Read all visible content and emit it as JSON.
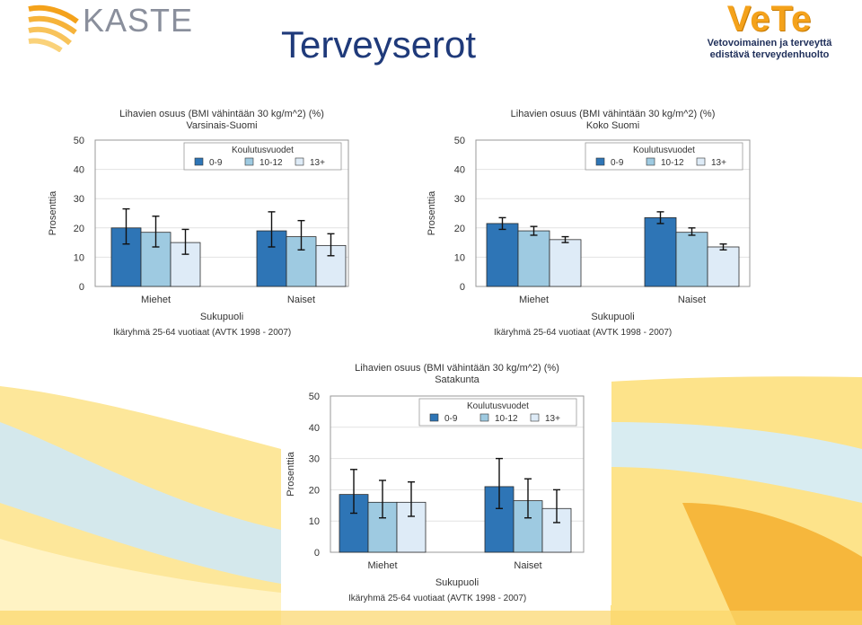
{
  "header": {
    "kaste_logo": "KASTE",
    "title": "Terveyserot",
    "vete_logo": "VeTe",
    "vete_tagline_1": "Vetovoimainen ja terveyttä",
    "vete_tagline_2": "edistävä terveydenhuolto"
  },
  "colors": {
    "series": [
      "#2e75b6",
      "#9ecae1",
      "#deebf7"
    ],
    "title_blue": "#1f3a7a",
    "vete_orange": "#f4a21b",
    "wave_yellow": "#fde79a",
    "wave_blue": "#bfe1f2"
  },
  "chart_data": [
    {
      "type": "bar",
      "title": "Lihavien osuus (BMI vähintään 30 kg/m^2) (%)",
      "subtitle": "Varsinais-Suomi",
      "xlabel": "Sukupuoli",
      "ylabel": "Prosenttia",
      "footnote": "Ikäryhmä 25-64 vuotiaat (AVTK 1998 - 2007)",
      "legend_title": "Koulutusvuodet",
      "legend_position": "top-right",
      "categories": [
        "Miehet",
        "Naiset"
      ],
      "ylim": [
        0,
        50
      ],
      "yticks": [
        0,
        10,
        20,
        30,
        40,
        50
      ],
      "series": [
        {
          "name": "0-9",
          "values": [
            20,
            19
          ],
          "low": [
            14.5,
            13.5
          ],
          "high": [
            26.5,
            25.5
          ]
        },
        {
          "name": "10-12",
          "values": [
            18.5,
            17
          ],
          "low": [
            13.5,
            12.5
          ],
          "high": [
            24,
            22.5
          ]
        },
        {
          "name": "13+",
          "values": [
            15,
            14
          ],
          "low": [
            11,
            10.5
          ],
          "high": [
            19.5,
            18
          ]
        }
      ]
    },
    {
      "type": "bar",
      "title": "Lihavien osuus (BMI vähintään 30 kg/m^2) (%)",
      "subtitle": "Koko Suomi",
      "xlabel": "Sukupuoli",
      "ylabel": "Prosenttia",
      "footnote": "Ikäryhmä 25-64 vuotiaat (AVTK 1998 - 2007)",
      "legend_title": "Koulutusvuodet",
      "legend_position": "top-right",
      "categories": [
        "Miehet",
        "Naiset"
      ],
      "ylim": [
        0,
        50
      ],
      "yticks": [
        0,
        10,
        20,
        30,
        40,
        50
      ],
      "series": [
        {
          "name": "0-9",
          "values": [
            21.5,
            23.5
          ],
          "low": [
            19.5,
            21.5
          ],
          "high": [
            23.5,
            25.5
          ]
        },
        {
          "name": "10-12",
          "values": [
            19,
            18.5
          ],
          "low": [
            17.5,
            17.5
          ],
          "high": [
            20.5,
            20
          ]
        },
        {
          "name": "13+",
          "values": [
            16,
            13.5
          ],
          "low": [
            15,
            12.5
          ],
          "high": [
            17,
            14.5
          ]
        }
      ]
    },
    {
      "type": "bar",
      "title": "Lihavien osuus (BMI vähintään 30 kg/m^2) (%)",
      "subtitle": "Satakunta",
      "xlabel": "Sukupuoli",
      "ylabel": "Prosenttia",
      "footnote": "Ikäryhmä 25-64 vuotiaat (AVTK 1998 - 2007)",
      "legend_title": "Koulutusvuodet",
      "legend_position": "top-right",
      "categories": [
        "Miehet",
        "Naiset"
      ],
      "ylim": [
        0,
        50
      ],
      "yticks": [
        0,
        10,
        20,
        30,
        40,
        50
      ],
      "series": [
        {
          "name": "0-9",
          "values": [
            18.5,
            21
          ],
          "low": [
            12.5,
            14
          ],
          "high": [
            26.5,
            30
          ]
        },
        {
          "name": "10-12",
          "values": [
            16,
            16.5
          ],
          "low": [
            11,
            11
          ],
          "high": [
            23,
            23.5
          ]
        },
        {
          "name": "13+",
          "values": [
            16,
            14
          ],
          "low": [
            11.5,
            9.5
          ],
          "high": [
            22.5,
            20
          ]
        }
      ]
    }
  ]
}
